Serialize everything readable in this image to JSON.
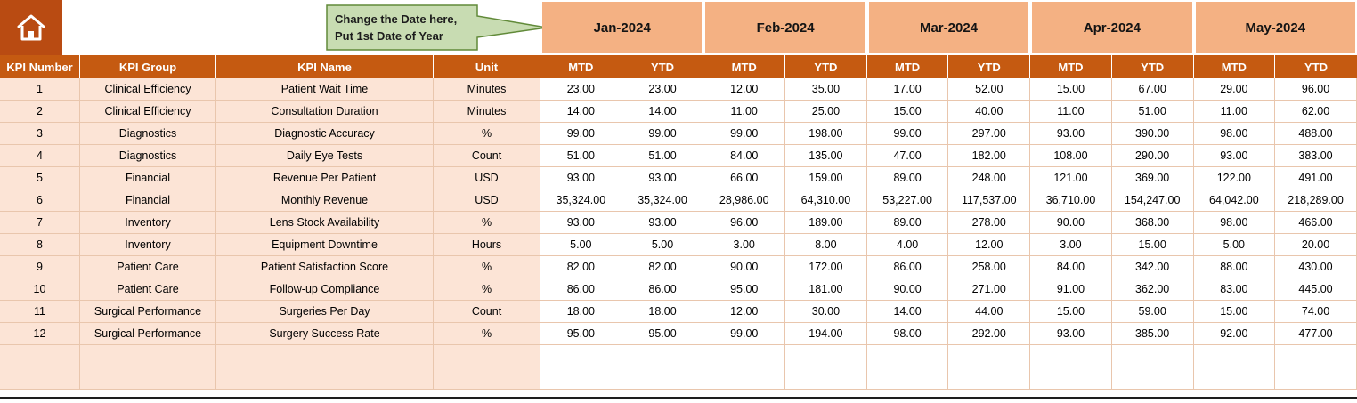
{
  "callout": {
    "line1": "Change the Date here,",
    "line2": "Put 1st Date of Year"
  },
  "months": [
    "Jan-2024",
    "Feb-2024",
    "Mar-2024",
    "Apr-2024",
    "May-2024"
  ],
  "subheaders": {
    "mtd": "MTD",
    "ytd": "YTD"
  },
  "columns": [
    "KPI Number",
    "KPI Group",
    "KPI Name",
    "Unit"
  ],
  "rows": [
    {
      "kpi_number": "1",
      "kpi_group": "Clinical Efficiency",
      "kpi_name": "Patient Wait Time",
      "unit": "Minutes",
      "values": [
        "23.00",
        "23.00",
        "12.00",
        "35.00",
        "17.00",
        "52.00",
        "15.00",
        "67.00",
        "29.00",
        "96.00"
      ]
    },
    {
      "kpi_number": "2",
      "kpi_group": "Clinical Efficiency",
      "kpi_name": "Consultation Duration",
      "unit": "Minutes",
      "values": [
        "14.00",
        "14.00",
        "11.00",
        "25.00",
        "15.00",
        "40.00",
        "11.00",
        "51.00",
        "11.00",
        "62.00"
      ]
    },
    {
      "kpi_number": "3",
      "kpi_group": "Diagnostics",
      "kpi_name": "Diagnostic Accuracy",
      "unit": "%",
      "values": [
        "99.00",
        "99.00",
        "99.00",
        "198.00",
        "99.00",
        "297.00",
        "93.00",
        "390.00",
        "98.00",
        "488.00"
      ]
    },
    {
      "kpi_number": "4",
      "kpi_group": "Diagnostics",
      "kpi_name": "Daily Eye Tests",
      "unit": "Count",
      "values": [
        "51.00",
        "51.00",
        "84.00",
        "135.00",
        "47.00",
        "182.00",
        "108.00",
        "290.00",
        "93.00",
        "383.00"
      ]
    },
    {
      "kpi_number": "5",
      "kpi_group": "Financial",
      "kpi_name": "Revenue Per Patient",
      "unit": "USD",
      "values": [
        "93.00",
        "93.00",
        "66.00",
        "159.00",
        "89.00",
        "248.00",
        "121.00",
        "369.00",
        "122.00",
        "491.00"
      ]
    },
    {
      "kpi_number": "6",
      "kpi_group": "Financial",
      "kpi_name": "Monthly Revenue",
      "unit": "USD",
      "values": [
        "35,324.00",
        "35,324.00",
        "28,986.00",
        "64,310.00",
        "53,227.00",
        "117,537.00",
        "36,710.00",
        "154,247.00",
        "64,042.00",
        "218,289.00"
      ]
    },
    {
      "kpi_number": "7",
      "kpi_group": "Inventory",
      "kpi_name": "Lens Stock Availability",
      "unit": "%",
      "values": [
        "93.00",
        "93.00",
        "96.00",
        "189.00",
        "89.00",
        "278.00",
        "90.00",
        "368.00",
        "98.00",
        "466.00"
      ]
    },
    {
      "kpi_number": "8",
      "kpi_group": "Inventory",
      "kpi_name": "Equipment Downtime",
      "unit": "Hours",
      "values": [
        "5.00",
        "5.00",
        "3.00",
        "8.00",
        "4.00",
        "12.00",
        "3.00",
        "15.00",
        "5.00",
        "20.00"
      ]
    },
    {
      "kpi_number": "9",
      "kpi_group": "Patient Care",
      "kpi_name": "Patient Satisfaction Score",
      "unit": "%",
      "values": [
        "82.00",
        "82.00",
        "90.00",
        "172.00",
        "86.00",
        "258.00",
        "84.00",
        "342.00",
        "88.00",
        "430.00"
      ]
    },
    {
      "kpi_number": "10",
      "kpi_group": "Patient Care",
      "kpi_name": "Follow-up Compliance",
      "unit": "%",
      "values": [
        "86.00",
        "86.00",
        "95.00",
        "181.00",
        "90.00",
        "271.00",
        "91.00",
        "362.00",
        "83.00",
        "445.00"
      ]
    },
    {
      "kpi_number": "11",
      "kpi_group": "Surgical Performance",
      "kpi_name": "Surgeries Per Day",
      "unit": "Count",
      "values": [
        "18.00",
        "18.00",
        "12.00",
        "30.00",
        "14.00",
        "44.00",
        "15.00",
        "59.00",
        "15.00",
        "74.00"
      ]
    },
    {
      "kpi_number": "12",
      "kpi_group": "Surgical Performance",
      "kpi_name": "Surgery Success Rate",
      "unit": "%",
      "values": [
        "95.00",
        "95.00",
        "99.00",
        "194.00",
        "98.00",
        "292.00",
        "93.00",
        "385.00",
        "92.00",
        "477.00"
      ]
    }
  ],
  "icons": {
    "home": "home-icon"
  },
  "colors": {
    "header_bg": "#C55A11",
    "month_bg": "#F4B183",
    "left_cols_bg": "#FCE4D6",
    "home_bg": "#B94B12",
    "grid_line": "#E9C6AD",
    "callout_fill": "#C8DCB2",
    "callout_border": "#618A39",
    "bottom_line": "#1E1E1E"
  }
}
